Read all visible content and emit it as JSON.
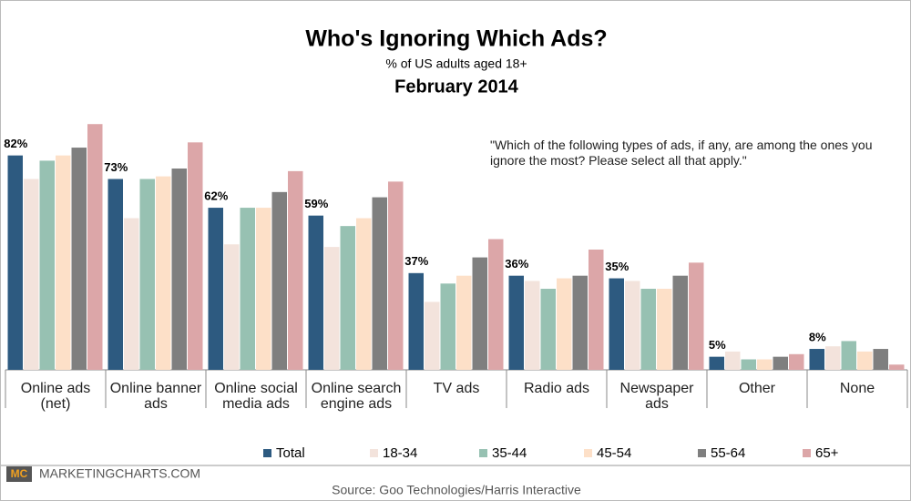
{
  "chart_data": {
    "type": "bar",
    "title": "Who's Ignoring Which Ads?",
    "subtitle": "% of US adults aged 18+",
    "date": "February 2014",
    "annotation": "\"Which of the following types of ads, if any, are among the ones you ignore the most? Please select all that apply.\"",
    "categories": [
      "Online ads\n(net)",
      "Online banner\nads",
      "Online social\nmedia ads",
      "Online search\nengine ads",
      "TV ads",
      "Radio ads",
      "Newspaper\nads",
      "Other",
      "None"
    ],
    "ylim": [
      0,
      100
    ],
    "legend": "bottom",
    "series": [
      {
        "name": "Total",
        "color": "#2d5a80",
        "values": [
          82,
          73,
          62,
          59,
          37,
          36,
          35,
          5,
          8
        ],
        "value_labels": [
          "82%",
          "73%",
          "62%",
          "59%",
          "37%",
          "36%",
          "35%",
          "5%",
          "8%"
        ]
      },
      {
        "name": "18-34",
        "color": "#f3e3dc",
        "values": [
          73,
          58,
          48,
          47,
          26,
          34,
          34,
          7,
          9
        ]
      },
      {
        "name": "35-44",
        "color": "#97c1b2",
        "values": [
          80,
          73,
          62,
          55,
          33,
          31,
          31,
          4,
          11
        ]
      },
      {
        "name": "45-54",
        "color": "#fde0c8",
        "values": [
          82,
          74,
          62,
          58,
          36,
          35,
          31,
          4,
          7
        ]
      },
      {
        "name": "55-64",
        "color": "#7f7f7f",
        "values": [
          85,
          77,
          68,
          66,
          43,
          36,
          36,
          5,
          8
        ]
      },
      {
        "name": "65+",
        "color": "#dca6a8",
        "values": [
          94,
          87,
          76,
          72,
          50,
          46,
          41,
          6,
          2
        ]
      }
    ]
  },
  "footer": {
    "logo": "MC",
    "brand": "MARKETINGCHARTS.COM",
    "source": "Source: Goo Technologies/Harris Interactive"
  }
}
